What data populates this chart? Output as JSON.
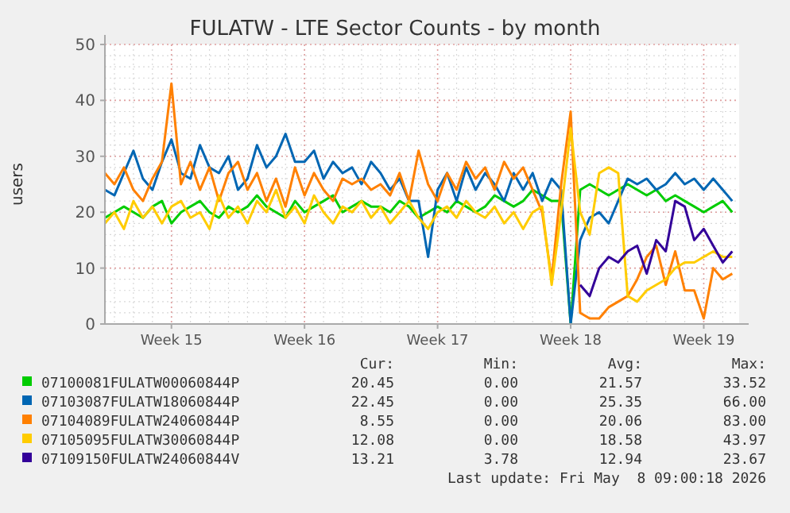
{
  "chart_data": {
    "type": "line",
    "title": "FULATW - LTE Sector Counts - by month",
    "ylabel": "users",
    "categories": [
      null,
      null,
      null,
      null,
      null,
      null,
      null,
      "Week 15",
      null,
      null,
      null,
      null,
      null,
      null,
      null,
      null,
      null,
      null,
      null,
      null,
      null,
      "Week 16",
      null,
      null,
      null,
      null,
      null,
      null,
      null,
      null,
      null,
      null,
      null,
      null,
      null,
      "Week 17",
      null,
      null,
      null,
      null,
      null,
      null,
      null,
      null,
      null,
      null,
      null,
      null,
      null,
      "Week 18",
      null,
      null,
      null,
      null,
      null,
      null,
      null,
      null,
      null,
      null,
      null,
      null,
      null,
      "Week 19",
      null,
      null,
      null
    ],
    "ylim": [
      0,
      50
    ],
    "yticks": [
      0,
      10,
      20,
      30,
      40,
      50
    ],
    "grid": true,
    "legend": "bottom",
    "marker": "none",
    "line_style": "solid",
    "series": [
      {
        "name": "07100081FULATW00060844P",
        "color": "#00cc00",
        "values": [
          19,
          20,
          21,
          20,
          19,
          21,
          22,
          18,
          20,
          21,
          22,
          20,
          19,
          21,
          20,
          21,
          23,
          21,
          20,
          19,
          22,
          20,
          21,
          22,
          23,
          20,
          21,
          22,
          21,
          21,
          20,
          22,
          21,
          19,
          20,
          21,
          20,
          22,
          21,
          20,
          21,
          23,
          22,
          21,
          22,
          24,
          23,
          22,
          22,
          0,
          24,
          25,
          24,
          23,
          24,
          25,
          24,
          23,
          24,
          22,
          23,
          22,
          21,
          20,
          21,
          22,
          20
        ]
      },
      {
        "name": "07103087FULATW18060844P",
        "color": "#0066b3",
        "values": [
          24,
          23,
          27,
          31,
          26,
          24,
          29,
          33,
          27,
          26,
          32,
          28,
          27,
          30,
          24,
          26,
          32,
          28,
          30,
          34,
          29,
          29,
          31,
          26,
          29,
          27,
          28,
          25,
          29,
          27,
          24,
          26,
          22,
          22,
          12,
          24,
          27,
          22,
          28,
          24,
          27,
          25,
          22,
          27,
          24,
          27,
          22,
          26,
          24,
          0,
          15,
          19,
          20,
          18,
          22,
          26,
          25,
          26,
          24,
          25,
          27,
          25,
          26,
          24,
          26,
          24,
          22
        ]
      },
      {
        "name": "07104089FULATW24060844P",
        "color": "#ff8000",
        "values": [
          27,
          25,
          28,
          24,
          22,
          26,
          29,
          43,
          25,
          29,
          24,
          28,
          22,
          27,
          29,
          24,
          27,
          22,
          26,
          21,
          28,
          23,
          27,
          24,
          22,
          26,
          25,
          26,
          24,
          25,
          23,
          27,
          22,
          31,
          25,
          22,
          27,
          24,
          29,
          26,
          28,
          24,
          29,
          26,
          28,
          24,
          20,
          8,
          25,
          38,
          2,
          1,
          1,
          3,
          4,
          5,
          8,
          12,
          14,
          7,
          13,
          6,
          6,
          1,
          10,
          8,
          9
        ]
      },
      {
        "name": "07105095FULATW30060844P",
        "color": "#ffcc00",
        "values": [
          18,
          20,
          17,
          22,
          19,
          21,
          18,
          21,
          22,
          19,
          20,
          17,
          23,
          19,
          21,
          18,
          22,
          20,
          24,
          19,
          21,
          18,
          23,
          20,
          18,
          21,
          20,
          22,
          19,
          21,
          18,
          20,
          22,
          19,
          17,
          20,
          21,
          19,
          22,
          20,
          19,
          21,
          18,
          20,
          17,
          20,
          21,
          7,
          20,
          35,
          20,
          16,
          27,
          28,
          27,
          5,
          4,
          6,
          7,
          8,
          10,
          11,
          11,
          12,
          13,
          12,
          12
        ]
      },
      {
        "name": "07109150FULATW24060844V",
        "color": "#330099",
        "values": [
          null,
          null,
          null,
          null,
          null,
          null,
          null,
          null,
          null,
          null,
          null,
          null,
          null,
          null,
          null,
          null,
          null,
          null,
          null,
          null,
          null,
          null,
          null,
          null,
          null,
          null,
          null,
          null,
          null,
          null,
          null,
          null,
          null,
          null,
          null,
          null,
          null,
          null,
          null,
          null,
          null,
          null,
          null,
          null,
          null,
          null,
          null,
          null,
          null,
          null,
          7,
          5,
          10,
          12,
          11,
          13,
          14,
          9,
          15,
          13,
          22,
          21,
          15,
          17,
          14,
          11,
          13
        ]
      }
    ],
    "annotations": [
      "Cur:",
      "Min:",
      "Avg:",
      "Max:",
      "20.45",
      "0.00",
      "21.57",
      "33.52",
      "22.45",
      "0.00",
      "25.35",
      "66.00",
      "8.55",
      "0.00",
      "20.06",
      "83.00",
      "12.08",
      "0.00",
      "18.58",
      "43.97",
      "13.21",
      "3.78",
      "12.94",
      "23.67",
      "Last update: Fri May  8 09:00:18 2026"
    ]
  }
}
